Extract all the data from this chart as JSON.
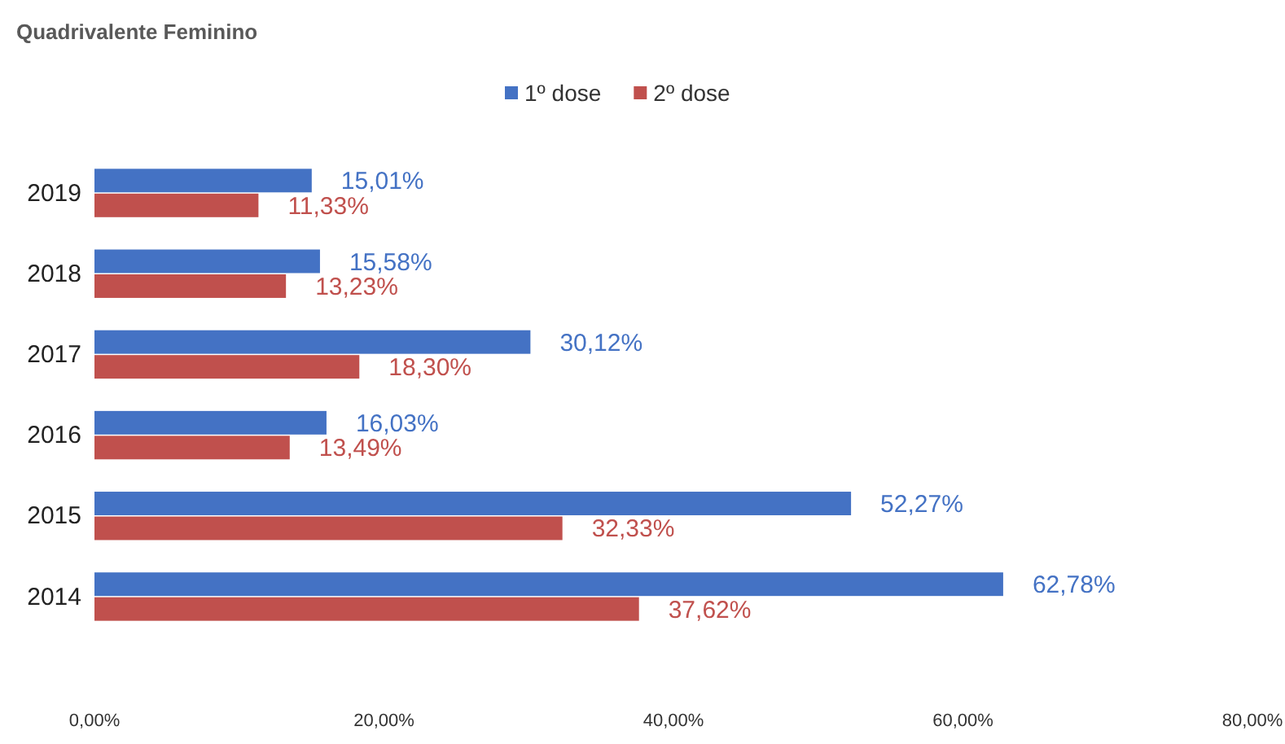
{
  "chart_data": {
    "type": "bar",
    "orientation": "horizontal",
    "title": "Quadrivalente Feminino",
    "categories": [
      "2019",
      "2018",
      "2017",
      "2016",
      "2015",
      "2014"
    ],
    "series": [
      {
        "name": "1º dose",
        "color": "#4472c4",
        "values": [
          15.01,
          15.58,
          30.12,
          16.03,
          52.27,
          62.78
        ],
        "value_labels": [
          "15,01%",
          "15,58%",
          "30,12%",
          "16,03%",
          "52,27%",
          "62,78%"
        ]
      },
      {
        "name": "2º dose",
        "color": "#c0504d",
        "values": [
          11.33,
          13.23,
          18.3,
          13.49,
          32.33,
          37.62
        ],
        "value_labels": [
          "11,33%",
          "13,23%",
          "18,30%",
          "13,49%",
          "32,33%",
          "37,62%"
        ]
      }
    ],
    "xlim": [
      0,
      80
    ],
    "xticks": [
      {
        "value": 0,
        "label": "0,00%"
      },
      {
        "value": 20,
        "label": "20,00%"
      },
      {
        "value": 40,
        "label": "40,00%"
      },
      {
        "value": 60,
        "label": "60,00%"
      },
      {
        "value": 80,
        "label": "80,00%"
      }
    ],
    "legend": "top",
    "grid": false
  }
}
